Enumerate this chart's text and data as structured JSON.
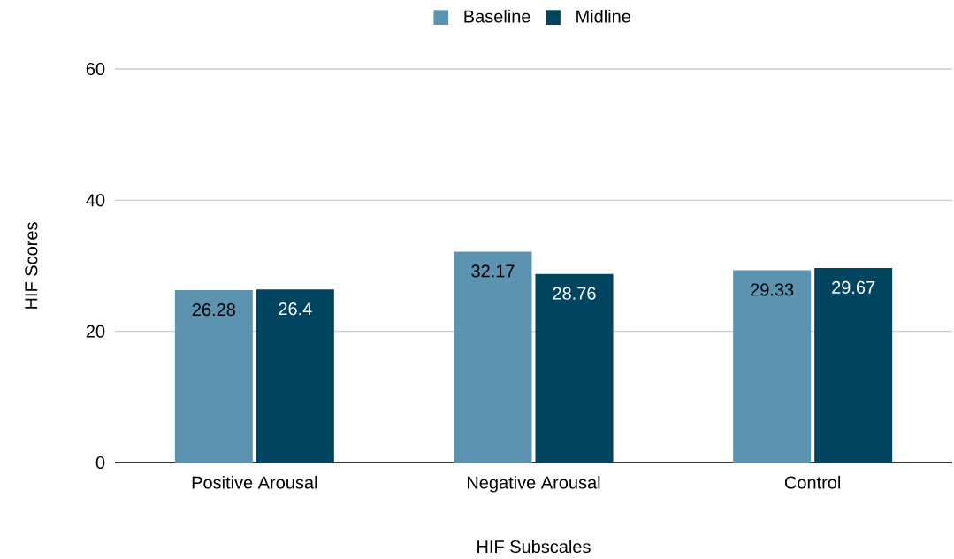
{
  "chart_data": {
    "type": "bar",
    "xlabel": "HIF Subscales",
    "ylabel": "HIF Scores",
    "categories": [
      "Positive Arousal",
      "Negative Arousal",
      "Control"
    ],
    "series": [
      {
        "name": "Baseline",
        "color": "#5b93b0",
        "values": [
          26.28,
          32.17,
          29.33
        ]
      },
      {
        "name": "Midline",
        "color": "#01445f",
        "values": [
          26.4,
          28.76,
          29.67
        ]
      }
    ],
    "ylim": [
      0,
      60
    ],
    "yticks": [
      0,
      20,
      40,
      60
    ],
    "grid": "y",
    "legend": "top",
    "data_labels": true
  }
}
